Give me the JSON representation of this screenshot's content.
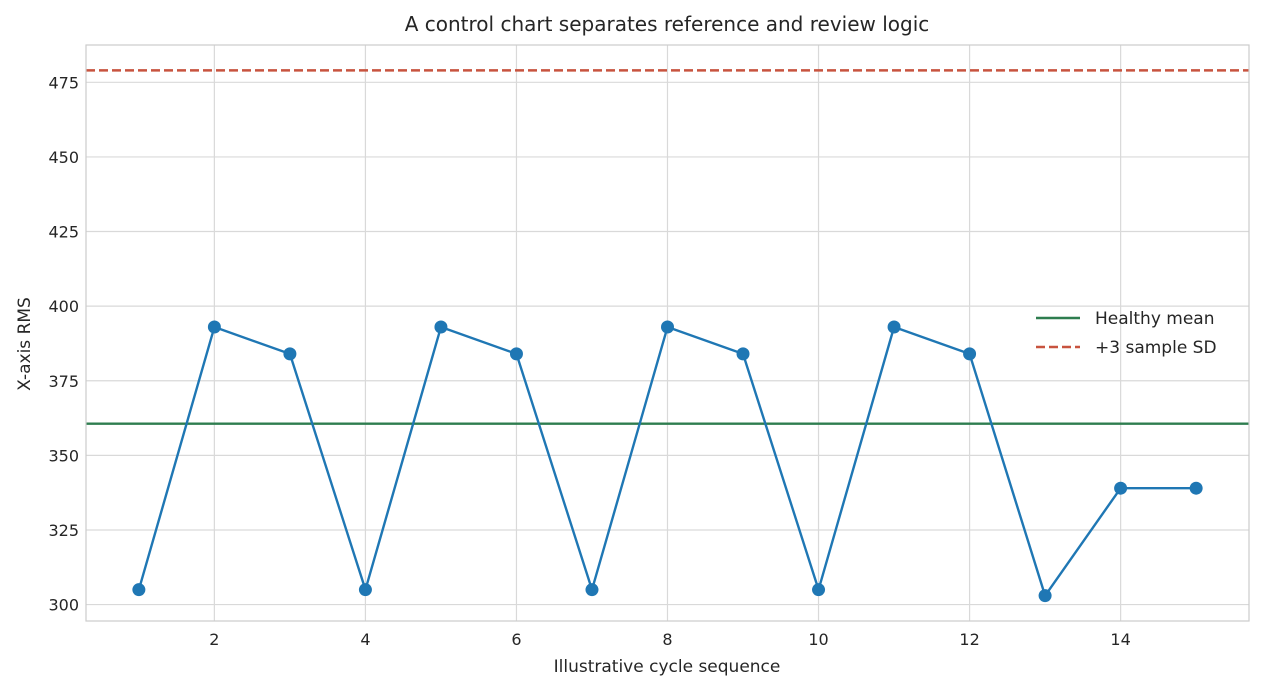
{
  "chart_data": {
    "type": "line",
    "title": "A control chart separates reference and review logic",
    "xlabel": "Illustrative cycle sequence",
    "ylabel": "X-axis RMS",
    "xlim": [
      0.3,
      15.7
    ],
    "ylim": [
      294.5,
      487.5
    ],
    "xticks": [
      2,
      4,
      6,
      8,
      10,
      12,
      14
    ],
    "yticks": [
      300,
      325,
      350,
      375,
      400,
      425,
      450,
      475
    ],
    "grid": true,
    "legend_position": "right",
    "series": [
      {
        "values_x": [
          1,
          2,
          3,
          4,
          5,
          6,
          7,
          8,
          9,
          10,
          11,
          12,
          13,
          14,
          15
        ],
        "values_y": [
          305,
          393,
          384,
          305,
          393,
          384,
          305,
          393,
          384,
          305,
          393,
          384,
          303,
          339,
          339
        ],
        "color": "#1f77b4",
        "marker": "circle"
      }
    ],
    "reference_lines": [
      {
        "name": "Healthy mean",
        "y": 360.6,
        "color": "#2e7d4f",
        "style": "solid"
      },
      {
        "name": "+3 sample SD",
        "y": 479,
        "color": "#c8533f",
        "style": "dashed"
      }
    ]
  }
}
